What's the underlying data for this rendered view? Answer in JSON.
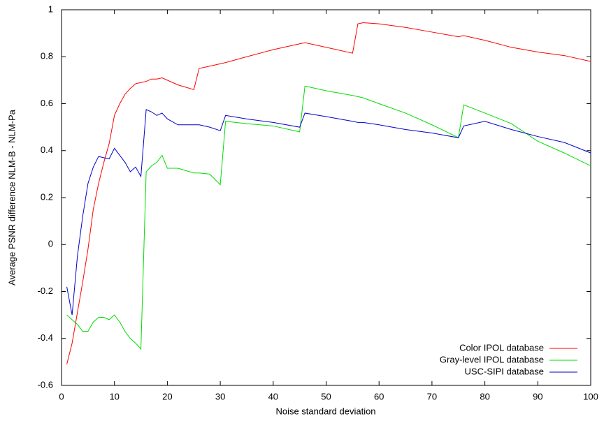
{
  "chart_data": {
    "type": "line",
    "x_label": "Noise standard deviation",
    "y_label": "Average PSNR difference NLM-B - NLM-Pa",
    "x": [
      1,
      2,
      3,
      4,
      5,
      6,
      7,
      8,
      9,
      10,
      11,
      12,
      13,
      14,
      15,
      16,
      17,
      18,
      19,
      20,
      22,
      25,
      26,
      28,
      30,
      31,
      35,
      40,
      45,
      46,
      50,
      55,
      56,
      57,
      60,
      65,
      70,
      75,
      76,
      80,
      85,
      90,
      95,
      100
    ],
    "series": [
      {
        "name": "Color IPOL database",
        "color": "#ff0000",
        "values": [
          -0.51,
          -0.42,
          -0.29,
          -0.16,
          -0.02,
          0.15,
          0.26,
          0.35,
          0.43,
          0.55,
          0.6,
          0.64,
          0.665,
          0.685,
          0.69,
          0.695,
          0.705,
          0.705,
          0.71,
          0.7,
          0.68,
          0.66,
          0.75,
          0.76,
          0.77,
          0.775,
          0.8,
          0.83,
          0.855,
          0.86,
          0.84,
          0.815,
          0.94,
          0.945,
          0.94,
          0.925,
          0.905,
          0.885,
          0.89,
          0.87,
          0.84,
          0.82,
          0.805,
          0.78
        ]
      },
      {
        "name": "Gray-level IPOL database",
        "color": "#00dd00",
        "values": [
          -0.3,
          -0.32,
          -0.34,
          -0.37,
          -0.37,
          -0.33,
          -0.31,
          -0.31,
          -0.32,
          -0.3,
          -0.33,
          -0.37,
          -0.4,
          -0.42,
          -0.445,
          0.31,
          0.335,
          0.35,
          0.38,
          0.325,
          0.325,
          0.305,
          0.305,
          0.3,
          0.255,
          0.525,
          0.515,
          0.505,
          0.48,
          0.675,
          0.655,
          0.635,
          0.63,
          0.625,
          0.6,
          0.56,
          0.51,
          0.455,
          0.595,
          0.56,
          0.515,
          0.44,
          0.39,
          0.335
        ]
      },
      {
        "name": "USC-SIPI database",
        "color": "#0000cc",
        "values": [
          -0.18,
          -0.3,
          -0.05,
          0.12,
          0.26,
          0.33,
          0.375,
          0.37,
          0.365,
          0.41,
          0.38,
          0.35,
          0.31,
          0.33,
          0.29,
          0.575,
          0.565,
          0.55,
          0.56,
          0.535,
          0.51,
          0.51,
          0.51,
          0.5,
          0.485,
          0.55,
          0.535,
          0.52,
          0.5,
          0.56,
          0.545,
          0.525,
          0.52,
          0.52,
          0.51,
          0.49,
          0.475,
          0.455,
          0.505,
          0.525,
          0.49,
          0.46,
          0.435,
          0.39
        ]
      }
    ],
    "xlim": [
      0,
      100
    ],
    "xticks": [
      0,
      10,
      20,
      30,
      40,
      50,
      60,
      70,
      80,
      90,
      100
    ],
    "ylim": [
      -0.6,
      1
    ],
    "yticks": [
      -0.6,
      -0.4,
      -0.2,
      0,
      0.2,
      0.4,
      0.6,
      0.8,
      1
    ],
    "legend": "lower right"
  }
}
